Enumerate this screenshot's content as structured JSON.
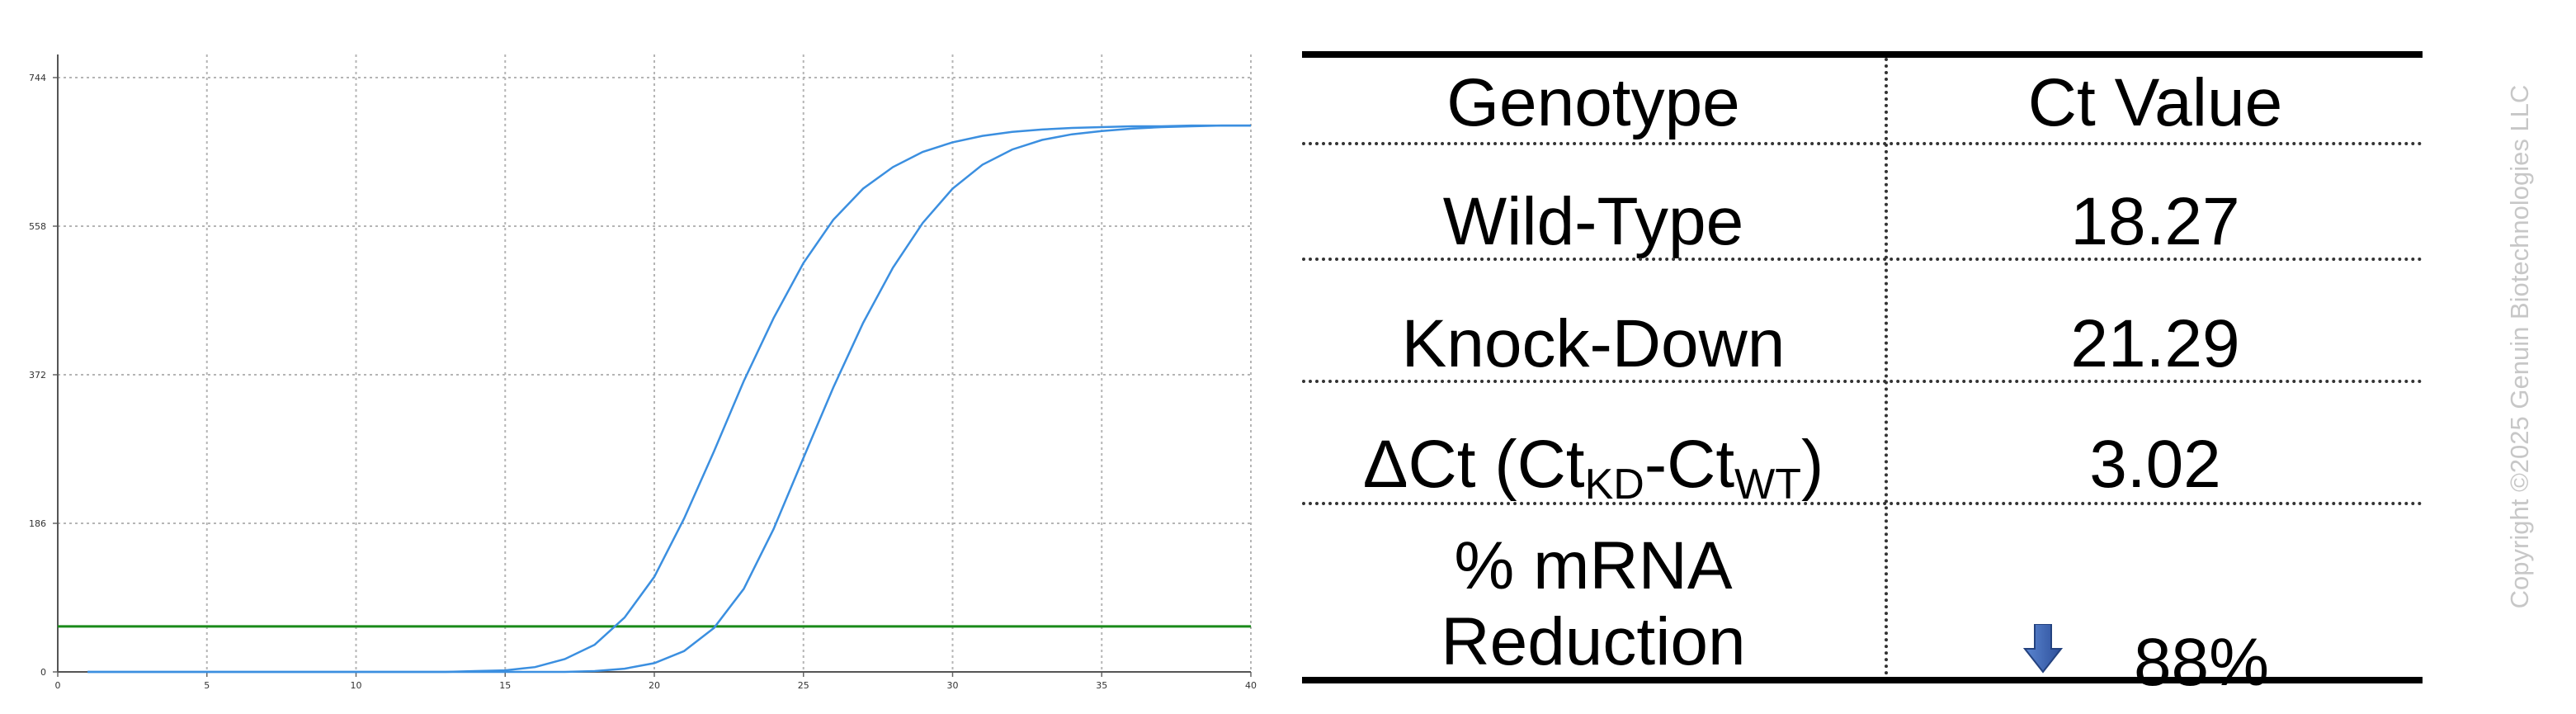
{
  "chart_data": {
    "type": "line",
    "xlim": [
      0,
      40
    ],
    "ylim": [
      0,
      744
    ],
    "x_ticks": [
      "0",
      "5",
      "10",
      "15",
      "20",
      "25",
      "30",
      "35",
      "40"
    ],
    "y_ticks": [
      "0",
      "186",
      "372",
      "558",
      "744"
    ],
    "grid": true,
    "threshold": 57,
    "series": [
      {
        "color": "#3b8fe0",
        "x": [
          1,
          2,
          3,
          4,
          5,
          6,
          7,
          8,
          9,
          10,
          11,
          12,
          13,
          14,
          15,
          16,
          17,
          18,
          19,
          20,
          21,
          22,
          23,
          24,
          25,
          26,
          27,
          28,
          29,
          30,
          31,
          32,
          33,
          34,
          35,
          36,
          37,
          38,
          39,
          40
        ],
        "y": [
          0,
          0,
          0,
          0,
          0,
          0,
          0,
          0,
          0,
          0,
          0,
          0,
          0,
          1,
          2,
          6,
          16,
          34,
          68,
          119,
          192,
          276,
          364,
          443,
          512,
          566,
          605,
          632,
          651,
          663,
          671,
          676,
          679,
          681,
          682,
          683,
          683,
          684,
          684,
          684
        ]
      },
      {
        "color": "#3b8fe0",
        "x": [
          1,
          2,
          3,
          4,
          5,
          6,
          7,
          8,
          9,
          10,
          11,
          12,
          13,
          14,
          15,
          16,
          17,
          18,
          19,
          20,
          21,
          22,
          23,
          24,
          25,
          26,
          27,
          28,
          29,
          30,
          31,
          32,
          33,
          34,
          35,
          36,
          37,
          38,
          39,
          40
        ],
        "y": [
          0,
          0,
          0,
          0,
          0,
          0,
          0,
          0,
          0,
          0,
          0,
          0,
          0,
          0,
          0,
          0,
          0,
          1,
          4,
          11,
          26,
          55,
          104,
          179,
          268,
          356,
          437,
          506,
          562,
          605,
          635,
          654,
          666,
          673,
          677,
          680,
          682,
          683,
          684,
          684
        ]
      }
    ],
    "colors": {
      "curve": "#3b8fe0",
      "threshold": "#1a8a1a",
      "grid": "#b5b5b5"
    }
  },
  "table": {
    "headers": {
      "genotype": "Genotype",
      "ct": "Ct Value"
    },
    "rows": {
      "wt_label": "Wild-Type",
      "wt_value": "18.27",
      "kd_label": "Knock-Down",
      "kd_value": "21.29",
      "delta_prefix": "ΔCt (Ct",
      "delta_sub1": "KD",
      "delta_mid": "-Ct",
      "delta_sub2": "WT",
      "delta_suffix": ")",
      "delta_value": "3.02",
      "reduction_line1": "% mRNA",
      "reduction_line2": "Reduction",
      "reduction_value": "88%"
    },
    "arrow_icon": "down-arrow-icon",
    "arrow_color": "#3a63b8"
  },
  "copyright": "Copyright ©2025 Genuin Biotechnologies LLC"
}
